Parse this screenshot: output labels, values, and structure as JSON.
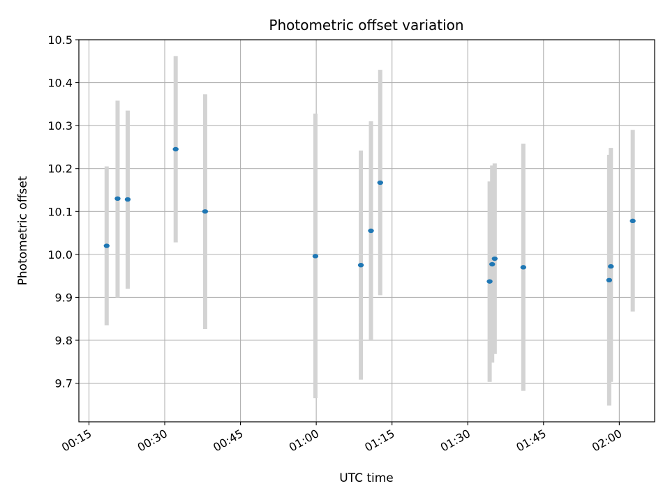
{
  "chart_data": {
    "type": "scatter",
    "title": "Photometric offset variation",
    "xlabel": "UTC time",
    "ylabel": "Photometric offset",
    "xlim": [
      "00:13",
      "02:07"
    ],
    "ylim": [
      9.61,
      10.5
    ],
    "x_ticks": [
      "00:15",
      "00:30",
      "00:45",
      "01:00",
      "01:15",
      "01:30",
      "01:45",
      "02:00"
    ],
    "y_ticks": [
      "9.7",
      "9.8",
      "9.9",
      "10.0",
      "10.1",
      "10.2",
      "10.3",
      "10.4",
      "10.5"
    ],
    "grid": true,
    "point_color": "#1f77b4",
    "errorbar_color": "#d3d3d3",
    "points": [
      {
        "time": "00:18:30",
        "value": 10.02,
        "low": 9.835,
        "high": 10.205
      },
      {
        "time": "00:20:40",
        "value": 10.13,
        "low": 9.9,
        "high": 10.358
      },
      {
        "time": "00:22:40",
        "value": 10.128,
        "low": 9.92,
        "high": 10.335
      },
      {
        "time": "00:32:10",
        "value": 10.245,
        "low": 10.028,
        "high": 10.462
      },
      {
        "time": "00:38:00",
        "value": 10.1,
        "low": 9.826,
        "high": 10.373
      },
      {
        "time": "00:59:50",
        "value": 9.996,
        "low": 9.665,
        "high": 10.328
      },
      {
        "time": "01:08:50",
        "value": 9.975,
        "low": 9.708,
        "high": 10.242
      },
      {
        "time": "01:10:50",
        "value": 10.055,
        "low": 9.8,
        "high": 10.31
      },
      {
        "time": "01:12:40",
        "value": 10.167,
        "low": 9.905,
        "high": 10.43
      },
      {
        "time": "01:34:20",
        "value": 9.937,
        "low": 9.703,
        "high": 10.17
      },
      {
        "time": "01:34:50",
        "value": 9.977,
        "low": 9.748,
        "high": 10.207
      },
      {
        "time": "01:35:20",
        "value": 9.99,
        "low": 9.768,
        "high": 10.212
      },
      {
        "time": "01:41:00",
        "value": 9.97,
        "low": 9.682,
        "high": 10.258
      },
      {
        "time": "01:58:00",
        "value": 9.94,
        "low": 9.648,
        "high": 10.232
      },
      {
        "time": "01:58:20",
        "value": 9.972,
        "low": 9.703,
        "high": 10.248
      },
      {
        "time": "02:02:40",
        "value": 10.078,
        "low": 9.867,
        "high": 10.29
      }
    ]
  }
}
